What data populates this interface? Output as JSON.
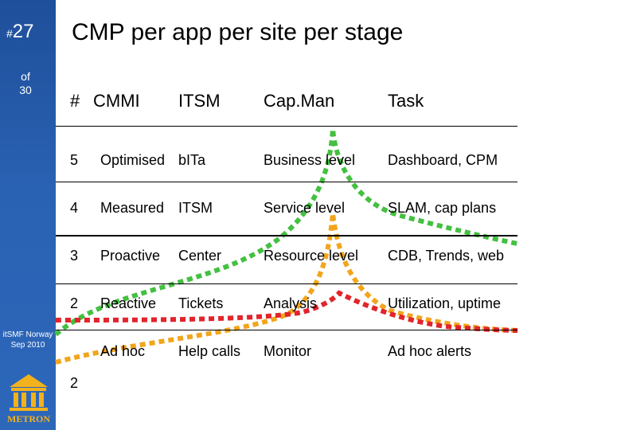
{
  "slide": {
    "hash": "#",
    "number": "27",
    "of_label": "of",
    "total": "30"
  },
  "footer": {
    "org_line1": "itSMF Norway",
    "org_line2": "Sep 2010",
    "logo_text": "METRON"
  },
  "title": "CMP per app per site per stage",
  "headers": {
    "level": "#",
    "cmmi": "CMMI",
    "itsm": "ITSM",
    "capman": "Cap.Man",
    "task": "Task"
  },
  "rows": [
    {
      "level": "5",
      "cmmi": "Optimised",
      "itsm": "bITa",
      "capman": "Business level",
      "task": "Dashboard, CPM"
    },
    {
      "level": "4",
      "cmmi": "Measured",
      "itsm": "ITSM",
      "capman": "Service level",
      "task": "SLAM, cap plans"
    },
    {
      "level": "3",
      "cmmi": "Proactive",
      "itsm": "Center",
      "capman": "Resource level",
      "task": "CDB, Trends, web"
    },
    {
      "level": "2",
      "cmmi": "Reactive",
      "itsm": "Tickets",
      "capman": "Analysis",
      "task": "Utilization, uptime"
    },
    {
      "level": "2",
      "cmmi": "Ad hoc",
      "itsm": "Help calls",
      "capman": "Monitor",
      "task": "Ad hoc alerts"
    }
  ],
  "colors": {
    "sidebar": "#2a62b3",
    "curve_green": "#44c040",
    "curve_orange": "#f2a51c",
    "curve_red": "#e2242c"
  }
}
